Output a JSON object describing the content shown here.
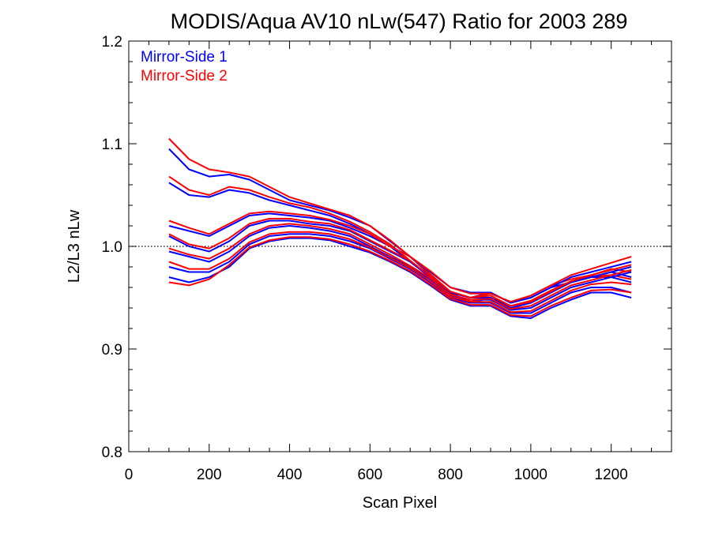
{
  "chart_data": {
    "type": "line",
    "title": "MODIS/Aqua AV10 nLw(547) Ratio for 2003 289",
    "xlabel": "Scan Pixel",
    "ylabel": "L2/L3 nLw",
    "xlim": [
      0,
      1350
    ],
    "ylim": [
      0.8,
      1.2
    ],
    "x_ticks": [
      0,
      200,
      400,
      600,
      800,
      1000,
      1200
    ],
    "x_tick_labels": [
      "0",
      "200",
      "400",
      "600",
      "800",
      "1000",
      "1200"
    ],
    "y_ticks": [
      0.8,
      0.9,
      1.0,
      1.1,
      1.2
    ],
    "y_tick_labels": [
      "0.8",
      "0.9",
      "1.0",
      "1.1",
      "1.2"
    ],
    "reference_line": {
      "y": 1.0,
      "style": "dotted"
    },
    "legend_placement": "top-left",
    "x": [
      100,
      150,
      200,
      250,
      300,
      350,
      400,
      450,
      500,
      550,
      600,
      650,
      700,
      750,
      800,
      850,
      900,
      950,
      1000,
      1050,
      1100,
      1150,
      1200,
      1250
    ],
    "series": [
      {
        "name": "Mirror-Side 1",
        "color": "#0000ff",
        "lines": [
          [
            1.095,
            1.075,
            1.068,
            1.07,
            1.065,
            1.055,
            1.045,
            1.04,
            1.035,
            1.028,
            1.02,
            1.005,
            0.99,
            0.972,
            0.955,
            0.95,
            0.955,
            0.945,
            0.95,
            0.96,
            0.965,
            0.97,
            0.975,
            0.97
          ],
          [
            1.062,
            1.05,
            1.048,
            1.055,
            1.052,
            1.045,
            1.04,
            1.035,
            1.03,
            1.022,
            1.012,
            1.0,
            0.985,
            0.97,
            0.955,
            0.945,
            0.95,
            0.94,
            0.945,
            0.955,
            0.965,
            0.97,
            0.97,
            0.965
          ],
          [
            1.02,
            1.015,
            1.01,
            1.02,
            1.03,
            1.032,
            1.03,
            1.028,
            1.025,
            1.018,
            1.01,
            1.0,
            0.99,
            0.975,
            0.96,
            0.955,
            0.955,
            0.945,
            0.95,
            0.96,
            0.97,
            0.975,
            0.98,
            0.985
          ],
          [
            1.01,
            1.0,
            0.995,
            1.005,
            1.02,
            1.025,
            1.025,
            1.022,
            1.02,
            1.015,
            1.005,
            0.995,
            0.985,
            0.97,
            0.955,
            0.95,
            0.95,
            0.94,
            0.945,
            0.955,
            0.965,
            0.97,
            0.975,
            0.98
          ],
          [
            0.995,
            0.99,
            0.985,
            0.995,
            1.01,
            1.018,
            1.02,
            1.018,
            1.015,
            1.01,
            1.0,
            0.99,
            0.98,
            0.968,
            0.952,
            0.948,
            0.948,
            0.938,
            0.94,
            0.95,
            0.96,
            0.965,
            0.97,
            0.975
          ],
          [
            0.98,
            0.975,
            0.975,
            0.985,
            1.002,
            1.01,
            1.012,
            1.012,
            1.01,
            1.005,
            0.998,
            0.988,
            0.978,
            0.965,
            0.95,
            0.945,
            0.945,
            0.935,
            0.935,
            0.945,
            0.955,
            0.96,
            0.96,
            0.955
          ],
          [
            0.97,
            0.965,
            0.97,
            0.98,
            0.998,
            1.005,
            1.008,
            1.008,
            1.006,
            1.0,
            0.994,
            0.985,
            0.975,
            0.962,
            0.948,
            0.942,
            0.942,
            0.932,
            0.93,
            0.94,
            0.948,
            0.955,
            0.955,
            0.95
          ]
        ]
      },
      {
        "name": "Mirror-Side 2",
        "color": "#ff0000",
        "lines": [
          [
            1.105,
            1.085,
            1.075,
            1.072,
            1.068,
            1.058,
            1.048,
            1.042,
            1.036,
            1.03,
            1.02,
            1.006,
            0.99,
            0.973,
            0.956,
            0.95,
            0.954,
            0.946,
            0.952,
            0.962,
            0.968,
            0.972,
            0.978,
            0.975
          ],
          [
            1.068,
            1.055,
            1.05,
            1.058,
            1.055,
            1.048,
            1.042,
            1.038,
            1.032,
            1.024,
            1.014,
            1.002,
            0.986,
            0.97,
            0.954,
            0.946,
            0.95,
            0.942,
            0.947,
            0.957,
            0.966,
            0.971,
            0.972,
            0.968
          ],
          [
            1.025,
            1.018,
            1.012,
            1.022,
            1.032,
            1.034,
            1.032,
            1.03,
            1.026,
            1.02,
            1.012,
            1.0,
            0.99,
            0.976,
            0.96,
            0.954,
            0.954,
            0.946,
            0.952,
            0.962,
            0.972,
            0.978,
            0.984,
            0.99
          ],
          [
            1.012,
            1.002,
            0.998,
            1.008,
            1.022,
            1.027,
            1.027,
            1.024,
            1.022,
            1.016,
            1.006,
            0.996,
            0.986,
            0.971,
            0.956,
            0.95,
            0.952,
            0.942,
            0.946,
            0.956,
            0.966,
            0.972,
            0.977,
            0.982
          ],
          [
            0.998,
            0.992,
            0.988,
            0.998,
            1.012,
            1.02,
            1.022,
            1.02,
            1.017,
            1.012,
            1.002,
            0.992,
            0.981,
            0.969,
            0.953,
            0.948,
            0.949,
            0.939,
            0.942,
            0.952,
            0.962,
            0.967,
            0.972,
            0.977
          ],
          [
            0.985,
            0.978,
            0.978,
            0.988,
            1.004,
            1.012,
            1.014,
            1.014,
            1.012,
            1.007,
            0.999,
            0.989,
            0.979,
            0.966,
            0.951,
            0.946,
            0.946,
            0.936,
            0.937,
            0.947,
            0.957,
            0.963,
            0.965,
            0.963
          ],
          [
            0.965,
            0.962,
            0.968,
            0.982,
            0.999,
            1.006,
            1.009,
            1.009,
            1.007,
            1.002,
            0.995,
            0.986,
            0.976,
            0.963,
            0.949,
            0.943,
            0.943,
            0.933,
            0.932,
            0.942,
            0.95,
            0.957,
            0.958,
            0.955
          ]
        ]
      }
    ]
  }
}
